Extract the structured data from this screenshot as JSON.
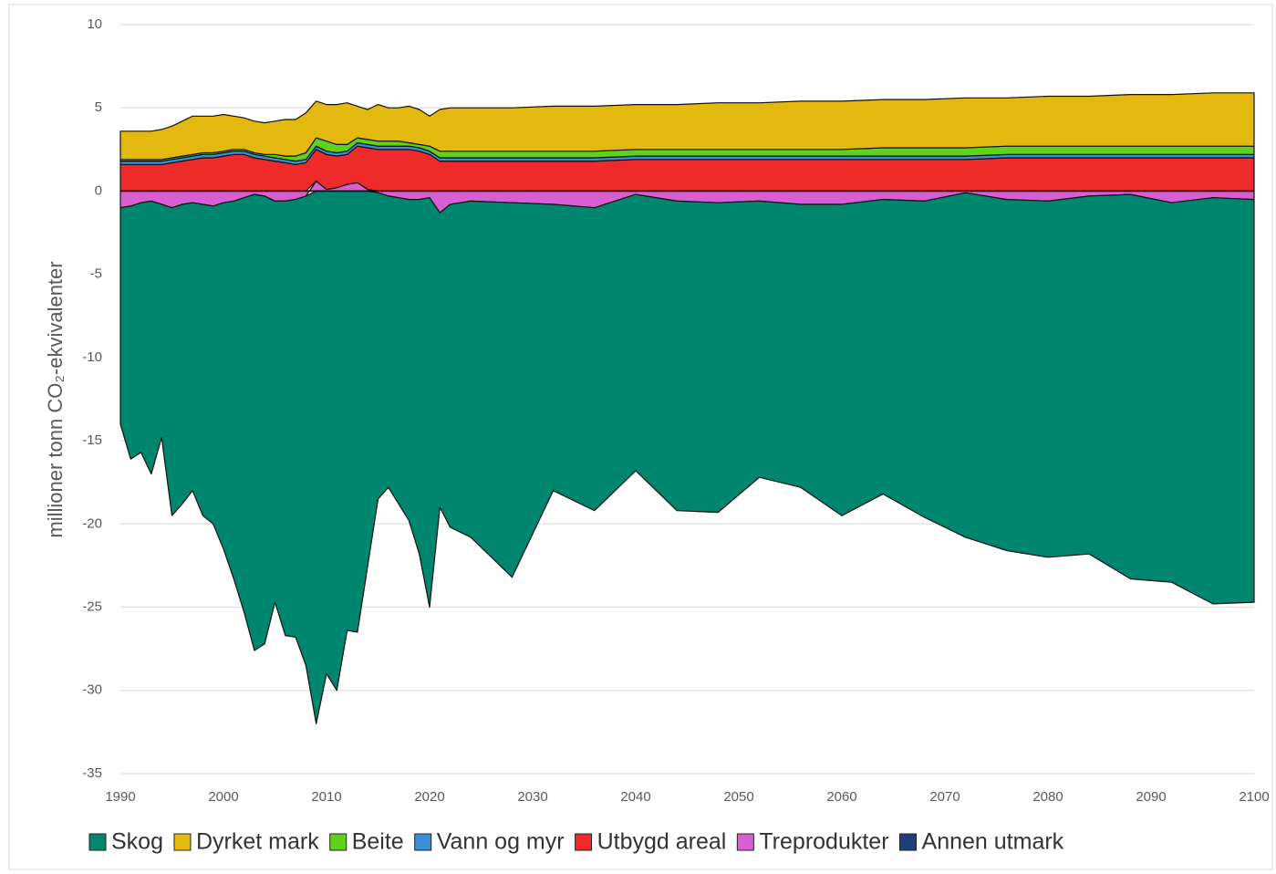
{
  "chart_data": {
    "type": "stacked_area",
    "y_label": "millioner tonn CO₂-ekvivalenter",
    "xlim": [
      1990,
      2100
    ],
    "xticks": [
      1990,
      2000,
      2010,
      2020,
      2030,
      2040,
      2050,
      2060,
      2070,
      2080,
      2090,
      2100
    ],
    "ylim": [
      -35,
      10
    ],
    "yticks": [
      -35,
      -30,
      -25,
      -20,
      -15,
      -10,
      -5,
      0,
      5,
      10
    ],
    "grid": true,
    "legend": "bottom",
    "x": [
      1990,
      1991,
      1992,
      1993,
      1994,
      1995,
      1996,
      1997,
      1998,
      1999,
      2000,
      2001,
      2002,
      2003,
      2004,
      2005,
      2006,
      2007,
      2008,
      2009,
      2010,
      2011,
      2012,
      2013,
      2014,
      2015,
      2016,
      2017,
      2018,
      2019,
      2020,
      2021,
      2022,
      2024,
      2028,
      2032,
      2036,
      2040,
      2044,
      2048,
      2052,
      2056,
      2060,
      2064,
      2068,
      2072,
      2076,
      2080,
      2084,
      2088,
      2092,
      2096,
      2100
    ],
    "series": [
      {
        "name": "Skog",
        "color": "#00856f",
        "values": [
          -13.0,
          -15.2,
          -15.0,
          -16.4,
          -14.0,
          -18.5,
          -18.0,
          -17.3,
          -18.7,
          -19.1,
          -20.8,
          -22.7,
          -24.9,
          -27.4,
          -26.9,
          -24.1,
          -26.1,
          -26.3,
          -28.2,
          -32,
          -29,
          -30,
          -26.4,
          -26.5,
          -22.5,
          -18.4,
          -17.5,
          -18.4,
          -19.3,
          -21.3,
          -24.6,
          -17.7,
          -19.4,
          -20.2,
          -22.5,
          -17.2,
          -18.2,
          -16.6,
          -18.6,
          -18.6,
          -16.6,
          -17.0,
          -18.7,
          -17.7,
          -19.0,
          -20.7,
          -21.1,
          -21.4,
          -21.5,
          -23.1,
          -22.8,
          -24.4,
          -24.2
        ]
      },
      {
        "name": "Dyrket mark",
        "color": "#e3b90f",
        "values": [
          1.7,
          1.7,
          1.7,
          1.7,
          1.8,
          1.9,
          2.1,
          2.3,
          2.2,
          2.2,
          2.2,
          2.0,
          1.9,
          1.9,
          1.9,
          2.0,
          2.2,
          2.2,
          2.4,
          2.2,
          2.2,
          2.4,
          2.5,
          1.9,
          1.8,
          2.2,
          2.0,
          2.0,
          2.2,
          2.1,
          1.8,
          2.5,
          2.6,
          2.6,
          2.6,
          2.7,
          2.7,
          2.7,
          2.7,
          2.8,
          2.8,
          2.9,
          2.9,
          2.9,
          2.9,
          3.0,
          2.9,
          3.0,
          3.0,
          3.1,
          3.1,
          3.2,
          3.2
        ]
      },
      {
        "name": "Beite",
        "color": "#5fd31c",
        "values": [
          0.1,
          0.1,
          0.1,
          0.1,
          0.1,
          0.1,
          0.1,
          0.1,
          0.1,
          0.1,
          0.1,
          0.1,
          0.1,
          0.1,
          0.1,
          0.2,
          0.2,
          0.3,
          0.4,
          0.5,
          0.6,
          0.5,
          0.4,
          0.3,
          0.3,
          0.3,
          0.3,
          0.3,
          0.2,
          0.2,
          0.3,
          0.4,
          0.4,
          0.4,
          0.4,
          0.4,
          0.4,
          0.4,
          0.4,
          0.4,
          0.4,
          0.4,
          0.4,
          0.5,
          0.5,
          0.5,
          0.5,
          0.5,
          0.5,
          0.5,
          0.5,
          0.5,
          0.5
        ]
      },
      {
        "name": "Vann og myr",
        "color": "#3a8fd6",
        "values": [
          0.2,
          0.2,
          0.2,
          0.2,
          0.2,
          0.2,
          0.2,
          0.2,
          0.2,
          0.2,
          0.2,
          0.2,
          0.2,
          0.2,
          0.2,
          0.2,
          0.2,
          0.2,
          0.2,
          0.2,
          0.2,
          0.2,
          0.2,
          0.2,
          0.2,
          0.2,
          0.2,
          0.2,
          0.2,
          0.2,
          0.2,
          0.2,
          0.2,
          0.2,
          0.2,
          0.2,
          0.2,
          0.2,
          0.2,
          0.2,
          0.2,
          0.2,
          0.2,
          0.2,
          0.2,
          0.2,
          0.2,
          0.2,
          0.2,
          0.2,
          0.2,
          0.2,
          0.2
        ]
      },
      {
        "name": "Utbygd areal",
        "color": "#ee2a2a",
        "values": [
          1.6,
          1.6,
          1.6,
          1.6,
          1.6,
          1.7,
          1.8,
          1.9,
          2.0,
          2.0,
          2.1,
          2.2,
          2.2,
          2.0,
          1.9,
          1.8,
          1.7,
          1.6,
          1.7,
          1.9,
          2.1,
          1.9,
          1.8,
          2.2,
          2.5,
          2.5,
          2.5,
          2.5,
          2.5,
          2.4,
          2.2,
          1.8,
          1.8,
          1.8,
          1.8,
          1.8,
          1.8,
          1.9,
          1.9,
          1.9,
          1.9,
          1.9,
          1.9,
          1.9,
          1.9,
          1.9,
          2.0,
          2.0,
          2.0,
          2.0,
          2.0,
          2.0,
          2.0
        ]
      },
      {
        "name": "Treprodukter",
        "color": "#d95ed1",
        "values": [
          -1.0,
          -0.9,
          -0.7,
          -0.6,
          -0.8,
          -1.0,
          -0.8,
          -0.7,
          -0.8,
          -0.9,
          -0.7,
          -0.6,
          -0.4,
          -0.2,
          -0.3,
          -0.6,
          -0.6,
          -0.5,
          -0.3,
          0.6,
          0.1,
          0.2,
          0.4,
          0.5,
          0.1,
          -0.1,
          -0.3,
          -0.4,
          -0.5,
          -0.5,
          -0.4,
          -1.3,
          -0.8,
          -0.6,
          -0.7,
          -0.8,
          -1.0,
          -0.2,
          -0.6,
          -0.7,
          -0.6,
          -0.8,
          -0.8,
          -0.5,
          -0.6,
          -0.1,
          -0.5,
          -0.6,
          -0.3,
          -0.2,
          -0.7,
          -0.4,
          -0.5
        ]
      },
      {
        "name": "Annen utmark",
        "color": "#1f3f7a",
        "values": [
          0,
          0,
          0,
          0,
          0,
          0,
          0,
          0,
          0,
          0,
          0,
          0,
          0,
          0,
          0,
          0,
          0,
          0,
          0,
          0,
          0,
          0,
          0,
          0,
          0,
          0,
          0,
          0,
          0,
          0,
          0,
          0,
          0,
          0,
          0,
          0,
          0,
          0,
          0,
          0,
          0,
          0,
          0,
          0,
          0,
          0,
          0,
          0,
          0,
          0,
          0,
          0,
          0
        ]
      }
    ]
  }
}
